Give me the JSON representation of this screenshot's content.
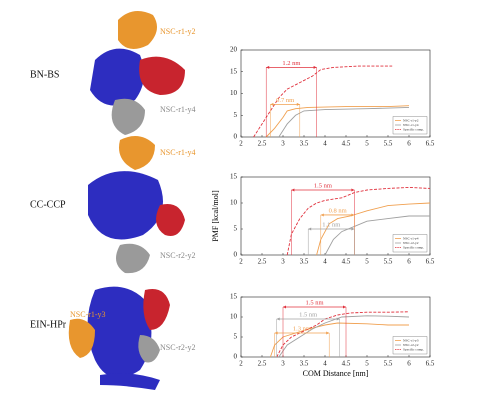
{
  "panels": [
    {
      "complex": "BN-BS",
      "labels": [
        "NSC-r1-y2",
        "NSC-r1-y4"
      ]
    },
    {
      "complex": "CC-CCP",
      "labels": [
        "NSC-r1-y4",
        "NSC-r2-y2"
      ]
    },
    {
      "complex": "EIN-HPr",
      "labels": [
        "NSC-r1-y3",
        "NSC-r2-y2"
      ]
    }
  ],
  "chart_data": [
    {
      "type": "line",
      "xlim": [
        2,
        6.5
      ],
      "ylim": [
        0,
        20
      ],
      "xticks": [
        2,
        2.5,
        3,
        3.5,
        4,
        4.5,
        5,
        5.5,
        6,
        6.5
      ],
      "yticks": [
        0,
        5,
        10,
        15,
        20
      ],
      "legend": "lower right",
      "series": [
        {
          "name": "NSC-r1-y2",
          "color": "#f0a050",
          "line_style": "solid",
          "x": [
            2.6,
            2.8,
            3.0,
            3.1,
            3.3,
            3.6,
            4.5,
            5.5,
            6.0
          ],
          "values": [
            0,
            2,
            4.5,
            6,
            6.5,
            6.8,
            7,
            7,
            7.2
          ]
        },
        {
          "name": "NSC-r1-y4",
          "color": "#a0a0a0",
          "line_style": "solid",
          "x": [
            2.9,
            3.1,
            3.3,
            3.5,
            4.0,
            5.0,
            6.0
          ],
          "values": [
            0,
            3,
            5,
            6,
            6.3,
            6.5,
            6.8
          ]
        },
        {
          "name": "Specific comp.",
          "color": "#e0303c",
          "line_style": "dashed",
          "x": [
            2.3,
            2.5,
            2.7,
            2.9,
            3.1,
            3.3,
            3.5,
            3.7,
            3.9,
            4.2,
            4.8,
            5.6
          ],
          "values": [
            0,
            3,
            6,
            9,
            11,
            12,
            13,
            14,
            15.5,
            16,
            16.3,
            16.3
          ]
        }
      ],
      "annotations": [
        {
          "text": "1.2 nm",
          "color": "#e0303c",
          "x": [
            2.6,
            3.8
          ],
          "y": 16
        },
        {
          "text": "0.7 nm",
          "color": "#f0a050",
          "x": [
            2.7,
            3.4
          ],
          "y": 7.5
        }
      ]
    },
    {
      "type": "line",
      "xlim": [
        2,
        6.5
      ],
      "ylim": [
        0,
        15
      ],
      "xticks": [
        2,
        2.5,
        3,
        3.5,
        4,
        4.5,
        5,
        5.5,
        6,
        6.5
      ],
      "yticks": [
        0,
        5,
        10,
        15
      ],
      "legend": "lower right",
      "ylabel": "PMF [kcal/mol]",
      "series": [
        {
          "name": "NSC-r1-y4",
          "color": "#f0a050",
          "line_style": "solid",
          "x": [
            3.8,
            3.9,
            4.1,
            4.3,
            4.6,
            5.0,
            5.5,
            6.0,
            6.5
          ],
          "values": [
            0,
            3,
            6,
            7,
            7.5,
            8.5,
            9.5,
            9.8,
            10
          ]
        },
        {
          "name": "NSC-r2-y2",
          "color": "#a0a0a0",
          "line_style": "solid",
          "x": [
            4.0,
            4.2,
            4.4,
            4.7,
            5.0,
            5.5,
            6.0,
            6.5
          ],
          "values": [
            0,
            3,
            4.5,
            5.5,
            6.5,
            7,
            7.5,
            7.5
          ]
        },
        {
          "name": "Specific comp.",
          "color": "#e0303c",
          "line_style": "dashed",
          "x": [
            3.1,
            3.2,
            3.4,
            3.6,
            3.8,
            4.0,
            4.4,
            4.7,
            5.0,
            5.5,
            6.0,
            6.5
          ],
          "values": [
            0,
            4,
            7,
            9,
            10,
            10.5,
            11,
            12,
            12.5,
            12.8,
            13,
            12.8
          ]
        }
      ],
      "annotations": [
        {
          "text": "1.5 nm",
          "color": "#e0303c",
          "x": [
            3.2,
            4.7
          ],
          "y": 12.5
        },
        {
          "text": "0.8 nm",
          "color": "#f0a050",
          "x": [
            3.9,
            4.7
          ],
          "y": 7.7
        },
        {
          "text": "1.1 nm",
          "color": "#a0a0a0",
          "x": [
            3.6,
            4.7
          ],
          "y": 5
        }
      ]
    },
    {
      "type": "line",
      "xlim": [
        2,
        6.5
      ],
      "ylim": [
        0,
        15
      ],
      "xticks": [
        2,
        2.5,
        3,
        3.5,
        4,
        4.5,
        5,
        5.5,
        6,
        6.5
      ],
      "yticks": [
        0,
        5,
        10,
        15
      ],
      "legend": "lower right",
      "xlabel": "COM Distance [nm]",
      "series": [
        {
          "name": "NSC-r1-y3",
          "color": "#f0a050",
          "line_style": "solid",
          "x": [
            2.7,
            2.8,
            3.0,
            3.3,
            3.6,
            4.0,
            4.3,
            5.0,
            5.5,
            6.0
          ],
          "values": [
            0,
            3,
            5,
            6,
            7,
            8,
            8.5,
            8.3,
            8,
            8
          ]
        },
        {
          "name": "NSC-r2-y2",
          "color": "#a0a0a0",
          "line_style": "solid",
          "x": [
            2.9,
            3.1,
            3.4,
            3.7,
            4.0,
            4.4,
            5.0,
            5.5,
            6.0
          ],
          "values": [
            0,
            3,
            5,
            7,
            8.5,
            10,
            10.3,
            10.2,
            10
          ]
        },
        {
          "name": "Specific comp.",
          "color": "#e0303c",
          "line_style": "dashed",
          "x": [
            2.85,
            3.0,
            3.2,
            3.5,
            3.8,
            4.0,
            4.3,
            4.6,
            5.0,
            5.5,
            6.0
          ],
          "values": [
            0,
            3,
            5,
            6.5,
            8,
            9.5,
            10.5,
            11,
            11.2,
            11.2,
            11.3
          ]
        }
      ],
      "annotations": [
        {
          "text": "1.5 nm",
          "color": "#e0303c",
          "x": [
            3.0,
            4.5
          ],
          "y": 12.5
        },
        {
          "text": "1.5 nm",
          "color": "#a0a0a0",
          "x": [
            2.85,
            4.35
          ],
          "y": 9.5
        },
        {
          "text": "1.3 nm",
          "color": "#f0a050",
          "x": [
            2.8,
            4.1
          ],
          "y": 6
        }
      ]
    }
  ]
}
